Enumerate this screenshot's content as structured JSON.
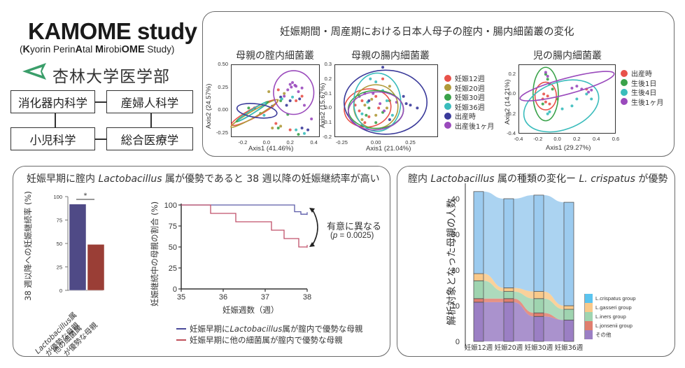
{
  "header": {
    "title": "KAMOME study",
    "subtitle_parts": [
      {
        "text": "(",
        "bold": false
      },
      {
        "text": "K",
        "bold": true
      },
      {
        "text": "yorin Perin",
        "bold": false
      },
      {
        "text": "A",
        "bold": true
      },
      {
        "text": "tal ",
        "bold": false
      },
      {
        "text": "M",
        "bold": true
      },
      {
        "text": "irobi",
        "bold": false
      },
      {
        "text": "OME",
        "bold": true
      },
      {
        "text": " Study)",
        "bold": false
      }
    ],
    "university": "杏林大学医学部",
    "logo_icon": "triangle-logo-icon",
    "logo_color": "#3a9e6a",
    "departments": [
      "消化器内科学",
      "産婦人科学",
      "小児科学",
      "総合医療学"
    ]
  },
  "pcoa_panel": {
    "title": "妊娠期間・周産期における日本人母子の腟内・腸内細菌叢の変化"
  },
  "bar_panel": {
    "title_pre": "妊娠早期に腟内 ",
    "title_italic": "Lactobacillus",
    "title_post": " 属が優勢であると 38 週以降の妊娠継続率が高い",
    "significance": "*",
    "km_annotation": "有意に異なる",
    "km_pvalue_pre": "(",
    "km_pvalue_p": "p",
    "km_pvalue_post": " = 0.0025)",
    "km_legend": [
      {
        "pre": "妊娠早期に",
        "italic": "Lactobacillus",
        "post": "属が腟内で優勢な母親",
        "color": "#4a4a9a"
      },
      {
        "pre": "妊娠早期に他の細菌属が腟内で優勢な母親",
        "italic": "",
        "post": "",
        "color": "#c0505a"
      }
    ]
  },
  "alluvial_panel": {
    "title_pre": "腟内 ",
    "title_italic": "Lactobacillus",
    "title_mid": " 属の種類の変化ー ",
    "title_italic2": "L. crispatus",
    "title_post": " が優勢"
  },
  "chart_data": [
    {
      "type": "scatter",
      "title": "母親の腟内細菌叢",
      "xlabel": "Axis1 (41.46%)",
      "ylabel": "Axis2 (24.57%)",
      "xlim": [
        -0.3,
        0.45
      ],
      "ylim": [
        -0.3,
        0.5
      ],
      "xticks": [
        "-0.2",
        "0.0",
        "0.2",
        "0.4"
      ],
      "xtick_values": [
        -0.2,
        0.0,
        0.2,
        0.4
      ],
      "yticks": [
        "0.50",
        "0.25",
        "0.00",
        "-0.25"
      ],
      "ytick_values": [
        0.5,
        0.25,
        0.0,
        -0.25
      ],
      "legend": "shared-right",
      "ellipses": [
        {
          "group": "妊娠12週",
          "cx": -0.1,
          "cy": -0.03,
          "rx": 0.22,
          "ry": 0.05,
          "angle": -28
        },
        {
          "group": "妊娠20週",
          "cx": -0.1,
          "cy": -0.04,
          "rx": 0.23,
          "ry": 0.035,
          "angle": -30
        },
        {
          "group": "妊娠30週",
          "cx": -0.12,
          "cy": -0.02,
          "rx": 0.16,
          "ry": 0.02,
          "angle": -32
        },
        {
          "group": "妊娠36週",
          "cx": -0.12,
          "cy": -0.02,
          "rx": 0.14,
          "ry": 0.02,
          "angle": -33
        },
        {
          "group": "出産時",
          "cx": -0.08,
          "cy": -0.01,
          "rx": 0.17,
          "ry": 0.075,
          "angle": 8
        },
        {
          "group": "出産後1ヶ月",
          "cx": 0.23,
          "cy": 0.19,
          "rx": 0.17,
          "ry": 0.24,
          "angle": 0
        }
      ],
      "points": [
        {
          "g": 5,
          "x": 0.2,
          "y": 0.28
        },
        {
          "g": 5,
          "x": 0.22,
          "y": 0.3
        },
        {
          "g": 5,
          "x": 0.25,
          "y": 0.26
        },
        {
          "g": 5,
          "x": 0.18,
          "y": 0.22
        },
        {
          "g": 5,
          "x": 0.27,
          "y": 0.2
        },
        {
          "g": 5,
          "x": 0.3,
          "y": 0.24
        },
        {
          "g": 5,
          "x": 0.15,
          "y": 0.15
        },
        {
          "g": 5,
          "x": 0.32,
          "y": 0.05
        },
        {
          "g": 5,
          "x": 0.38,
          "y": -0.1
        },
        {
          "g": 5,
          "x": 0.24,
          "y": 0.27
        },
        {
          "g": 5,
          "x": 0.21,
          "y": 0.25
        },
        {
          "g": 4,
          "x": 0.12,
          "y": 0.14
        },
        {
          "g": 4,
          "x": 0.2,
          "y": 0.1
        },
        {
          "g": 4,
          "x": 0.28,
          "y": 0.12
        },
        {
          "g": 4,
          "x": 0.05,
          "y": 0.04
        },
        {
          "g": 4,
          "x": 0.3,
          "y": -0.2
        },
        {
          "g": 4,
          "x": 0.35,
          "y": -0.22
        },
        {
          "g": 4,
          "x": -0.1,
          "y": 0.02
        },
        {
          "g": 4,
          "x": 0.17,
          "y": 0.05
        },
        {
          "g": 0,
          "x": 0.1,
          "y": 0.22
        },
        {
          "g": 0,
          "x": 0.25,
          "y": 0.1
        },
        {
          "g": 0,
          "x": 0.3,
          "y": 0.15
        },
        {
          "g": 0,
          "x": 0.2,
          "y": -0.22
        },
        {
          "g": 0,
          "x": 0.08,
          "y": -0.15
        },
        {
          "g": 1,
          "x": 0.02,
          "y": 0.2
        },
        {
          "g": 1,
          "x": 0.15,
          "y": 0.18
        },
        {
          "g": 1,
          "x": 0.12,
          "y": -0.18
        },
        {
          "g": 1,
          "x": 0.05,
          "y": -0.2
        },
        {
          "g": 2,
          "x": 0.12,
          "y": 0.1
        },
        {
          "g": 2,
          "x": 0.18,
          "y": -0.05
        },
        {
          "g": 2,
          "x": 0.27,
          "y": -0.27
        },
        {
          "g": 2,
          "x": 0.1,
          "y": -0.2
        },
        {
          "g": 3,
          "x": 0.13,
          "y": 0.12
        },
        {
          "g": 3,
          "x": 0.22,
          "y": 0.14
        },
        {
          "g": 3,
          "x": 0.25,
          "y": -0.22
        },
        {
          "g": 3,
          "x": 0.32,
          "y": -0.26
        },
        {
          "g": 2,
          "x": -0.15,
          "y": 0.02
        },
        {
          "g": 3,
          "x": -0.12,
          "y": 0.0
        },
        {
          "g": 2,
          "x": -0.05,
          "y": -0.04
        },
        {
          "g": 3,
          "x": -0.02,
          "y": -0.06
        }
      ]
    },
    {
      "type": "scatter",
      "title": "母親の腸内細菌叢",
      "xlabel": "Axis1 (21.04%)",
      "ylabel": "Axis2 (15.67%)",
      "xlim": [
        -0.3,
        0.45
      ],
      "ylim": [
        -0.2,
        0.3
      ],
      "xticks": [
        "-0.25",
        "0.00",
        "0.25"
      ],
      "xtick_values": [
        -0.25,
        0.0,
        0.25
      ],
      "yticks": [
        "0.3",
        "0.2",
        "0.1",
        "0.0",
        "-0.1",
        "-0.2"
      ],
      "ytick_values": [
        0.3,
        0.2,
        0.1,
        0.0,
        -0.1,
        -0.2
      ],
      "legend": "right",
      "groups": [
        "妊娠12週",
        "妊娠20週",
        "妊娠30週",
        "妊娠36週",
        "出産時",
        "出産後1ヶ月"
      ],
      "colors": [
        "#e8524a",
        "#b09a3a",
        "#3aa24a",
        "#3abcbc",
        "#3a3a9a",
        "#9a4abc"
      ],
      "ellipses": [
        {
          "group": "妊娠12週",
          "cx": -0.06,
          "cy": 0.0,
          "rx": 0.17,
          "ry": 0.13,
          "angle": -10
        },
        {
          "group": "妊娠20週",
          "cx": 0.0,
          "cy": 0.01,
          "rx": 0.16,
          "ry": 0.15,
          "angle": 0
        },
        {
          "group": "妊娠30週",
          "cx": 0.0,
          "cy": -0.01,
          "rx": 0.2,
          "ry": 0.13,
          "angle": 0
        },
        {
          "group": "妊娠36週",
          "cx": 0.01,
          "cy": 0.04,
          "rx": 0.17,
          "ry": 0.2,
          "angle": 0
        },
        {
          "group": "出産時",
          "cx": 0.07,
          "cy": 0.04,
          "rx": 0.3,
          "ry": 0.22,
          "angle": 0
        },
        {
          "group": "出産後1ヶ月",
          "cx": 0.0,
          "cy": -0.02,
          "rx": 0.2,
          "ry": 0.13,
          "angle": -5
        }
      ],
      "points": [
        {
          "g": 0,
          "x": -0.1,
          "y": 0.05
        },
        {
          "g": 0,
          "x": -0.12,
          "y": -0.02
        },
        {
          "g": 0,
          "x": -0.05,
          "y": -0.06
        },
        {
          "g": 0,
          "x": 0.02,
          "y": 0.0
        },
        {
          "g": 0,
          "x": -0.15,
          "y": 0.02
        },
        {
          "g": 0,
          "x": 0.05,
          "y": 0.2
        },
        {
          "g": 0,
          "x": -0.08,
          "y": -0.1
        },
        {
          "g": 0,
          "x": 0.0,
          "y": 0.08
        },
        {
          "g": 1,
          "x": -0.08,
          "y": 0.02
        },
        {
          "g": 1,
          "x": 0.0,
          "y": -0.05
        },
        {
          "g": 1,
          "x": -0.03,
          "y": 0.06
        },
        {
          "g": 1,
          "x": 0.08,
          "y": 0.0
        },
        {
          "g": 1,
          "x": 0.1,
          "y": 0.15
        },
        {
          "g": 1,
          "x": -0.1,
          "y": -0.08
        },
        {
          "g": 2,
          "x": -0.05,
          "y": 0.0
        },
        {
          "g": 2,
          "x": 0.05,
          "y": -0.03
        },
        {
          "g": 2,
          "x": -0.12,
          "y": 0.08
        },
        {
          "g": 2,
          "x": 0.0,
          "y": -0.1
        },
        {
          "g": 2,
          "x": 0.1,
          "y": 0.05
        },
        {
          "g": 2,
          "x": -0.07,
          "y": -0.05
        },
        {
          "g": 3,
          "x": -0.04,
          "y": 0.2
        },
        {
          "g": 3,
          "x": 0.0,
          "y": 0.18
        },
        {
          "g": 3,
          "x": 0.08,
          "y": 0.05
        },
        {
          "g": 3,
          "x": -0.1,
          "y": -0.04
        },
        {
          "g": 3,
          "x": 0.12,
          "y": -0.05
        },
        {
          "g": 3,
          "x": 0.05,
          "y": 0.12
        },
        {
          "g": 3,
          "x": -0.06,
          "y": 0.04
        },
        {
          "g": 4,
          "x": 0.05,
          "y": 0.28
        },
        {
          "g": 4,
          "x": 0.2,
          "y": 0.08
        },
        {
          "g": 4,
          "x": 0.25,
          "y": 0.02
        },
        {
          "g": 4,
          "x": 0.3,
          "y": 0.0
        },
        {
          "g": 4,
          "x": 0.22,
          "y": 0.03
        },
        {
          "g": 4,
          "x": -0.05,
          "y": 0.05
        },
        {
          "g": 4,
          "x": 0.1,
          "y": -0.08
        },
        {
          "g": 5,
          "x": -0.02,
          "y": 0.1
        },
        {
          "g": 5,
          "x": 0.06,
          "y": -0.02
        },
        {
          "g": 5,
          "x": -0.1,
          "y": -0.12
        },
        {
          "g": 5,
          "x": 0.03,
          "y": 0.03
        },
        {
          "g": 5,
          "x": 0.15,
          "y": 0.04
        },
        {
          "g": 5,
          "x": -0.08,
          "y": 0.1
        }
      ]
    },
    {
      "type": "scatter",
      "title": "児の腸内細菌叢",
      "xlabel": "Axis1 (29.27%)",
      "ylabel": "Axis2 (14.21%)",
      "xlim": [
        -0.4,
        0.6
      ],
      "ylim": [
        -0.4,
        0.3
      ],
      "xticks": [
        "-0.4",
        "-0.2",
        "0.0",
        "0.2",
        "0.4",
        "0.6"
      ],
      "xtick_values": [
        -0.4,
        -0.2,
        0.0,
        0.2,
        0.4,
        0.6
      ],
      "yticks": [
        "0.2",
        "0.0",
        "-0.2",
        "-0.4"
      ],
      "ytick_values": [
        0.2,
        0.0,
        -0.2,
        -0.4
      ],
      "legend": "right",
      "groups": [
        "出産時",
        "生後1日",
        "生後4日",
        "生後1ヶ月"
      ],
      "colors": [
        "#e8524a",
        "#3aa24a",
        "#3abcbc",
        "#9a4abc"
      ],
      "ellipses": [
        {
          "group": "出産時",
          "cx": -0.12,
          "cy": -0.02,
          "rx": 0.11,
          "ry": 0.14,
          "angle": 0
        },
        {
          "group": "生後1日",
          "cx": -0.12,
          "cy": 0.0,
          "rx": 0.13,
          "ry": 0.27,
          "angle": 0
        },
        {
          "group": "生後4日",
          "cx": 0.04,
          "cy": -0.12,
          "rx": 0.4,
          "ry": 0.24,
          "angle": -20
        },
        {
          "group": "生後1ヶ月",
          "cx": 0.1,
          "cy": 0.08,
          "rx": 0.5,
          "ry": 0.08,
          "angle": -15
        }
      ],
      "points": [
        {
          "g": 0,
          "x": -0.15,
          "y": -0.05
        },
        {
          "g": 0,
          "x": -0.12,
          "y": -0.08
        },
        {
          "g": 0,
          "x": -0.1,
          "y": -0.02
        },
        {
          "g": 0,
          "x": -0.14,
          "y": 0.0
        },
        {
          "g": 0,
          "x": -0.08,
          "y": -0.1
        },
        {
          "g": 0,
          "x": 0.3,
          "y": 0.05
        },
        {
          "g": 1,
          "x": -0.12,
          "y": 0.2
        },
        {
          "g": 1,
          "x": -0.1,
          "y": 0.15
        },
        {
          "g": 1,
          "x": -0.05,
          "y": 0.05
        },
        {
          "g": 1,
          "x": -0.15,
          "y": -0.1
        },
        {
          "g": 1,
          "x": -0.08,
          "y": 0.1
        },
        {
          "g": 1,
          "x": 0.0,
          "y": -0.05
        },
        {
          "g": 2,
          "x": -0.1,
          "y": -0.2
        },
        {
          "g": 2,
          "x": -0.08,
          "y": -0.18
        },
        {
          "g": 2,
          "x": 0.05,
          "y": -0.15
        },
        {
          "g": 2,
          "x": 0.2,
          "y": -0.05
        },
        {
          "g": 2,
          "x": 0.3,
          "y": 0.0
        },
        {
          "g": 2,
          "x": 0.35,
          "y": -0.05
        },
        {
          "g": 2,
          "x": 0.15,
          "y": -0.12
        },
        {
          "g": 3,
          "x": -0.12,
          "y": 0.22
        },
        {
          "g": 3,
          "x": -0.1,
          "y": 0.18
        },
        {
          "g": 3,
          "x": 0.2,
          "y": 0.08
        },
        {
          "g": 3,
          "x": 0.25,
          "y": 0.05
        },
        {
          "g": 3,
          "x": 0.32,
          "y": 0.02
        },
        {
          "g": 3,
          "x": 0.35,
          "y": 0.04
        },
        {
          "g": 3,
          "x": 0.15,
          "y": 0.06
        }
      ]
    },
    {
      "type": "bar",
      "categories": [
        "Lactobacillus属が優勢な母親",
        "他の細菌属が優勢な母親"
      ],
      "category_parts": [
        {
          "line1_italic": "Lactobacillus",
          "line1_post": "属",
          "line2": "が優勢な母親"
        },
        {
          "line1_italic": "",
          "line1_post": "他の細菌属",
          "line2": "が優勢な母親"
        }
      ],
      "values": [
        92,
        49
      ],
      "colors": [
        "#4f4a86",
        "#9a3e36"
      ],
      "ylabel": "38 週以降への妊娠継続率 (%)",
      "yticks": [
        "0",
        "25",
        "50",
        "75",
        "100"
      ],
      "ytick_values": [
        0,
        25,
        50,
        75,
        100
      ],
      "ylim": [
        0,
        100
      ],
      "annotation": "* (significant)"
    },
    {
      "type": "line",
      "subtype": "kaplan-meier step",
      "xlabel": "妊娠週数（週）",
      "ylabel": "妊娠継続中の母親の割合 (%)",
      "xlim": [
        35,
        38
      ],
      "ylim": [
        0,
        100
      ],
      "xticks": [
        "35",
        "36",
        "37",
        "38"
      ],
      "xtick_values": [
        35,
        36,
        37,
        38
      ],
      "yticks": [
        "0",
        "25",
        "50",
        "75",
        "100"
      ],
      "ytick_values": [
        0,
        25,
        50,
        75,
        100
      ],
      "series": [
        {
          "name": "妊娠早期にLactobacillus属が腟内で優勢な母親",
          "color": "#5a5aa8",
          "steps": [
            [
              35,
              100
            ],
            [
              37.7,
              100
            ],
            [
              37.7,
              92
            ],
            [
              37.85,
              92
            ],
            [
              37.85,
              89
            ],
            [
              38,
              89
            ]
          ]
        },
        {
          "name": "妊娠早期に他の細菌属が腟内で優勢な母親",
          "color": "#c0506a",
          "steps": [
            [
              35,
              100
            ],
            [
              35.7,
              100
            ],
            [
              35.7,
              90
            ],
            [
              36.3,
              90
            ],
            [
              36.3,
              80
            ],
            [
              37.15,
              80
            ],
            [
              37.15,
              70
            ],
            [
              37.45,
              70
            ],
            [
              37.45,
              60
            ],
            [
              37.8,
              60
            ],
            [
              37.8,
              50
            ],
            [
              38,
              50
            ]
          ]
        }
      ]
    },
    {
      "type": "bar",
      "subtype": "alluvial (stacked)",
      "ylabel": "解析対象となった母親の人数",
      "categories": [
        "妊娠12週",
        "妊娠20週",
        "妊娠30週",
        "妊娠36週"
      ],
      "ylim": [
        0,
        42
      ],
      "yticks": [
        "0",
        "10",
        "20",
        "30",
        "40"
      ],
      "ytick_values": [
        0,
        10,
        20,
        30,
        40
      ],
      "series": [
        {
          "name": "その他",
          "color": "#9b7fc4",
          "values": [
            11,
            11,
            7,
            6
          ]
        },
        {
          "name": "L.jonsenii group",
          "color": "#e07e6e",
          "values": [
            1,
            1,
            1,
            0
          ]
        },
        {
          "name": "L.iners group",
          "color": "#9fd4b0",
          "values": [
            5,
            2,
            4,
            3
          ]
        },
        {
          "name": "L.gasseri group",
          "color": "#f9c98a",
          "values": [
            2,
            1,
            2,
            1
          ]
        },
        {
          "name": "L.crispatus group",
          "color": "#9ccbef",
          "values": [
            23,
            25,
            27,
            29
          ]
        }
      ],
      "legend_order": [
        "L.crispatus group",
        "L.gasseri group",
        "L.iners group",
        "L.jonsenii group",
        "その他"
      ],
      "legend_colors": [
        "#5bc4ef",
        "#f9c98a",
        "#9fd4b0",
        "#e07e6e",
        "#9b7fc4"
      ],
      "legend": "bottom-right"
    }
  ]
}
